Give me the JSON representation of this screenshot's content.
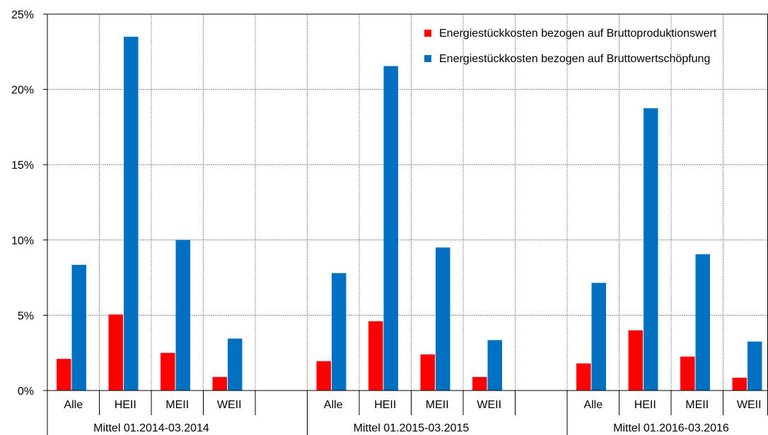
{
  "chart_data": {
    "type": "bar",
    "ylim": [
      0,
      25
    ],
    "yticks": [
      "0%",
      "5%",
      "10%",
      "15%",
      "20%",
      "25%"
    ],
    "ytick_values": [
      0,
      5,
      10,
      15,
      20,
      25
    ],
    "grid": true,
    "legend_position": "top-right",
    "groups": [
      {
        "label": "Mittel 01.2014-03.2014",
        "categories": [
          "Alle",
          "HEII",
          "MEII",
          "WEII"
        ]
      },
      {
        "label": "Mittel 01.2015-03.2015",
        "categories": [
          "Alle",
          "HEII",
          "MEII",
          "WEII"
        ]
      },
      {
        "label": "Mittel 01.2016-03.2016",
        "categories": [
          "Alle",
          "HEII",
          "MEII",
          "WEII"
        ]
      }
    ],
    "series": [
      {
        "name": "Energiestückkosten bezogen auf Bruttoproduktionswert",
        "color": "#ff0000",
        "values": [
          [
            2.1,
            5.05,
            2.5,
            0.9
          ],
          [
            1.95,
            4.6,
            2.4,
            0.9
          ],
          [
            1.8,
            4.0,
            2.25,
            0.85
          ]
        ]
      },
      {
        "name": "Energiestückkosten bezogen auf Bruttowertschöpfung",
        "color": "#0070c0",
        "values": [
          [
            8.35,
            23.5,
            10.0,
            3.45
          ],
          [
            7.8,
            21.55,
            9.5,
            3.35
          ],
          [
            7.15,
            18.75,
            9.05,
            3.25
          ]
        ]
      }
    ]
  }
}
